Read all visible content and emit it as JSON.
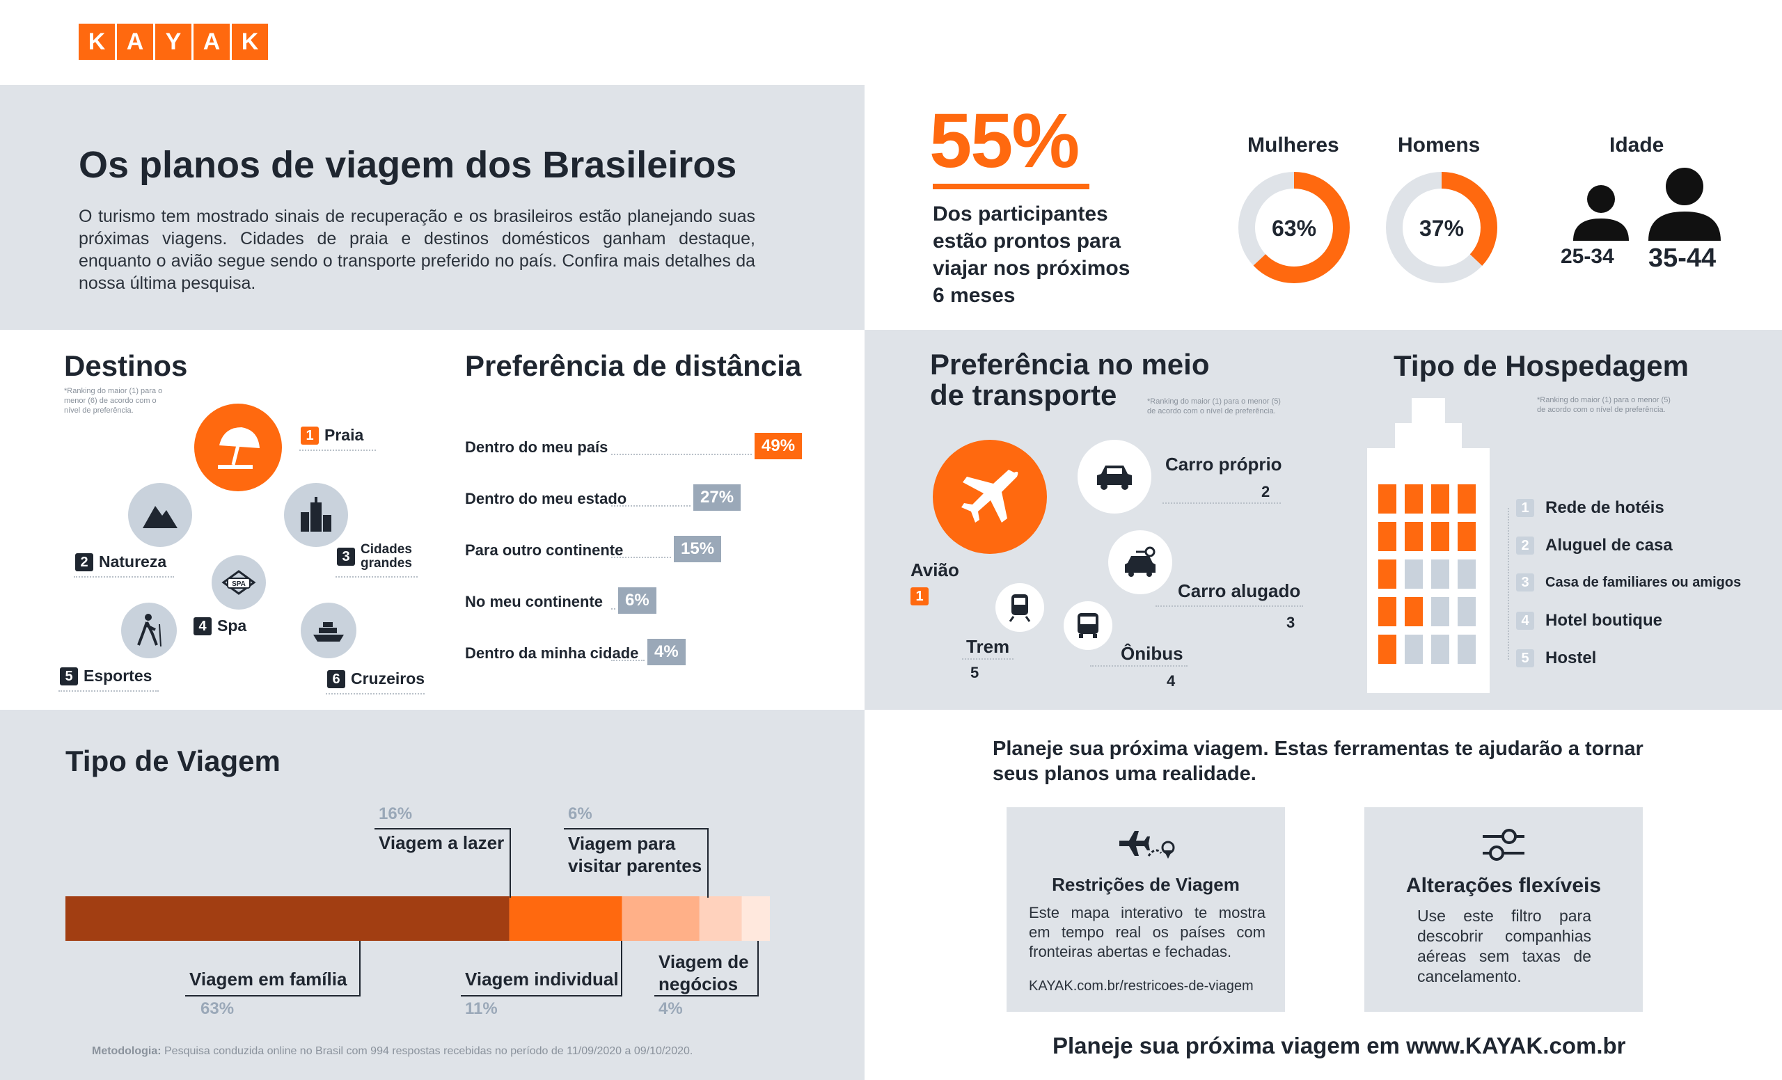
{
  "logo": {
    "letters": [
      "K",
      "A",
      "Y",
      "A",
      "K"
    ],
    "color": "#ff690f"
  },
  "hero": {
    "title": "Os planos de viagem dos Brasileiros",
    "intro": "O turismo tem mostrado sinais de recuperação e os brasileiros estão planejando suas próximas viagens. Cidades de praia e destinos domésticos ganham destaque, enquanto o avião segue sendo o transporte preferido no país. Confira mais detalhes da nossa última pesquisa."
  },
  "stats": {
    "big_value": "55%",
    "big_text": [
      "Dos participantes",
      "estão prontos para",
      "viajar nos próximos",
      "6 meses"
    ],
    "women": {
      "label": "Mulheres",
      "value_text": "63%",
      "fraction": 0.63
    },
    "men": {
      "label": "Homens",
      "value_text": "37%",
      "fraction": 0.37
    },
    "age": {
      "label": "Idade",
      "groups": [
        "25-34",
        "35-44"
      ]
    }
  },
  "destinos": {
    "title": "Destinos",
    "note": [
      "*Ranking do maior (1) para o",
      "menor (6) de acordo com o",
      "nível de preferência."
    ],
    "items": [
      {
        "rank": "1",
        "label": "Praia",
        "icon": "beach-umbrella-icon"
      },
      {
        "rank": "2",
        "label": "Natureza",
        "icon": "mountain-icon"
      },
      {
        "rank": "3",
        "label": "Cidades grandes",
        "label_lines": [
          "Cidades",
          "grandes"
        ],
        "icon": "city-buildings-icon"
      },
      {
        "rank": "4",
        "label": "Spa",
        "icon": "spa-icon"
      },
      {
        "rank": "5",
        "label": "Esportes",
        "icon": "hiker-icon"
      },
      {
        "rank": "6",
        "label": "Cruzeiros",
        "icon": "cruise-ship-icon"
      }
    ]
  },
  "distancia": {
    "title": "Preferência de distância",
    "items": [
      {
        "label": "Dentro do meu país",
        "value_text": "49%",
        "value": 49,
        "color": "#ff690f"
      },
      {
        "label": "Dentro do meu estado",
        "value_text": "27%",
        "value": 27,
        "color": "#9aa8b8"
      },
      {
        "label": "Para outro continente",
        "value_text": "15%",
        "value": 15,
        "color": "#9aa8b8"
      },
      {
        "label": "No meu continente",
        "value_text": "6%",
        "value": 6,
        "color": "#9aa8b8"
      },
      {
        "label": "Dentro da minha cidade",
        "value_text": "4%",
        "value": 4,
        "color": "#9aa8b8"
      }
    ]
  },
  "transporte": {
    "title_lines": [
      "Preferência no meio",
      "de transporte"
    ],
    "note": [
      "*Ranking do maior (1) para o menor (5)",
      "de acordo com o nível de preferência."
    ],
    "items": [
      {
        "rank": "1",
        "label": "Avião",
        "icon": "airplane-icon"
      },
      {
        "rank": "2",
        "label": "Carro próprio",
        "icon": "car-icon"
      },
      {
        "rank": "3",
        "label": "Carro alugado",
        "icon": "rental-car-icon"
      },
      {
        "rank": "4",
        "label": "Ônibus",
        "icon": "bus-icon"
      },
      {
        "rank": "5",
        "label": "Trem",
        "icon": "train-icon"
      }
    ]
  },
  "hospedagem": {
    "title": "Tipo de Hospedagem",
    "note": [
      "*Ranking do maior (1) para o menor (5)",
      "de acordo com o nível de preferência."
    ],
    "items": [
      {
        "rank": "1",
        "label": "Rede de hotéis"
      },
      {
        "rank": "2",
        "label": "Aluguel de casa"
      },
      {
        "rank": "3",
        "label": "Casa de familiares ou amigos"
      },
      {
        "rank": "4",
        "label": "Hotel boutique"
      },
      {
        "rank": "5",
        "label": "Hostel"
      }
    ]
  },
  "viagem": {
    "title": "Tipo de Viagem",
    "segments": [
      {
        "label": "Viagem em família",
        "value_text": "63%",
        "value": 63,
        "color": "#a23e12"
      },
      {
        "label": "Viagem a lazer",
        "value_text": "16%",
        "value": 16,
        "color": "#ff690f"
      },
      {
        "label": "Viagem individual",
        "value_text": "11%",
        "value": 11,
        "color": "#ffb088"
      },
      {
        "label_lines": [
          "Viagem para",
          "visitar parentes"
        ],
        "label": "Viagem para visitar parentes",
        "value_text": "6%",
        "value": 6,
        "color": "#ffd2bd"
      },
      {
        "label_lines": [
          "Viagem de",
          "negócios"
        ],
        "label": "Viagem de negócios",
        "value_text": "4%",
        "value": 4,
        "color": "#ffe8dd"
      }
    ],
    "method_label": "Metodologia:",
    "method_text": "Pesquisa conduzida online no Brasil com 994 respostas recebidas no período de 11/09/2020 a 09/10/2020."
  },
  "tools": {
    "heading_lines": [
      "Planeje sua próxima viagem. Estas ferramentas te ajudarão a tornar",
      "seus planos uma realidade."
    ],
    "cards": [
      {
        "title": "Restrições de Viagem",
        "icon": "plane-route-icon",
        "text_lines": [
          "Este mapa interativo te mostra",
          "em tempo real os países com",
          "fronteiras abertas e fechadas."
        ],
        "link": "KAYAK.com.br/restricoes-de-viagem"
      },
      {
        "title": "Alterações flexíveis",
        "icon": "sliders-icon",
        "text_lines": [
          "Use este filtro para",
          "descobrir companhias",
          "aéreas sem taxas de",
          "cancelamento."
        ]
      }
    ],
    "footer": "Planeje sua próxima viagem em www.KAYAK.com.br"
  },
  "colors": {
    "accent": "#ff690f",
    "gray_panel": "#dfe3e8",
    "bar_gray": "#9aa8b8",
    "icon_circle": "#c9d2dc"
  }
}
